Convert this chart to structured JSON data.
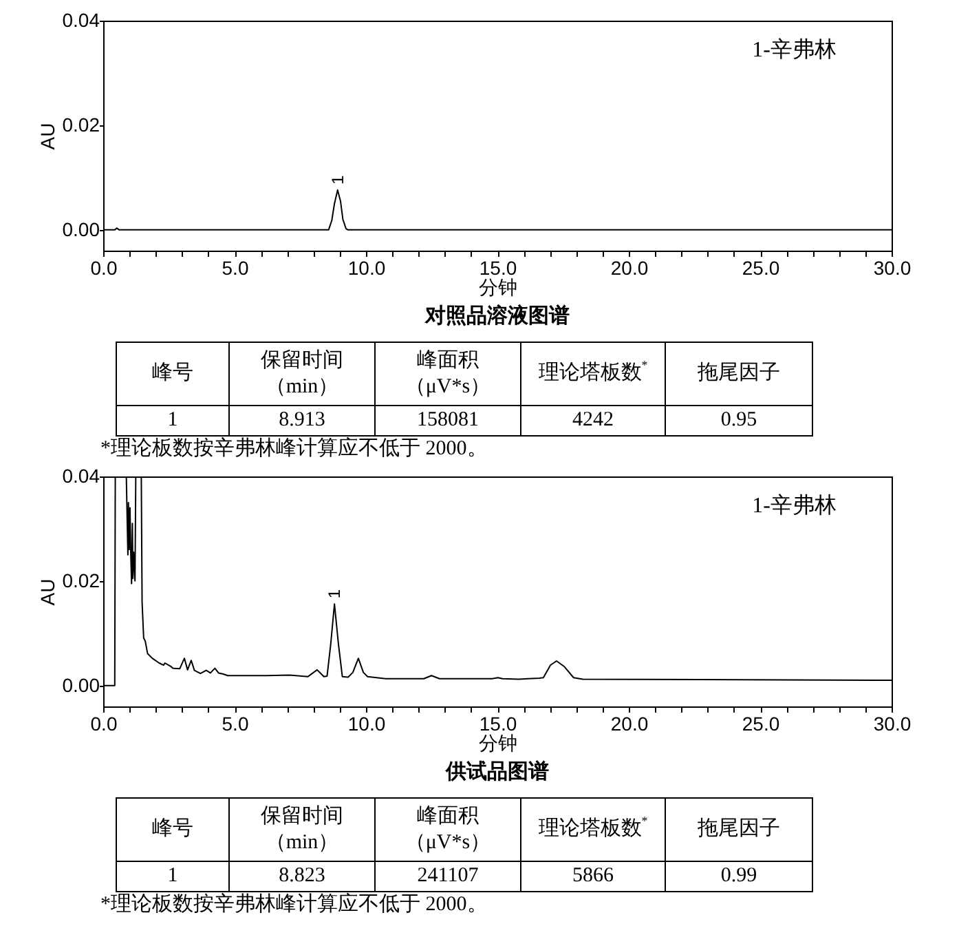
{
  "chart_data": [
    {
      "type": "line",
      "title": "对照品溶液图谱",
      "xlabel": "分钟",
      "ylabel": "AU",
      "annotations": [
        "1-辛弗林",
        {
          "text": "1",
          "x": 8.92,
          "y": 0.0076
        }
      ],
      "x": [
        0,
        0.45,
        0.52,
        0.6,
        8.58,
        8.7,
        8.8,
        8.92,
        9.03,
        9.12,
        9.24,
        9.3,
        30
      ],
      "series": [
        {
          "color": "#000000",
          "values": [
            0,
            0,
            0.0003,
            0,
            0,
            0.0018,
            0.005,
            0.0076,
            0.0055,
            0.002,
            0.0002,
            0,
            0
          ]
        }
      ],
      "xlim": [
        0,
        30
      ],
      "ylim": [
        -0.004,
        0.04
      ],
      "xticks": [
        {
          "value": 0,
          "label": "0.0"
        },
        {
          "value": 1,
          "label": null
        },
        {
          "value": 2,
          "label": null
        },
        {
          "value": 3,
          "label": null
        },
        {
          "value": 4,
          "label": null
        },
        {
          "value": 5,
          "label": "5.0"
        },
        {
          "value": 6,
          "label": null
        },
        {
          "value": 7,
          "label": null
        },
        {
          "value": 8,
          "label": null
        },
        {
          "value": 9,
          "label": null
        },
        {
          "value": 10,
          "label": "10.0"
        },
        {
          "value": 11,
          "label": null
        },
        {
          "value": 12,
          "label": null
        },
        {
          "value": 13,
          "label": null
        },
        {
          "value": 14,
          "label": null
        },
        {
          "value": 15,
          "label": "15.0"
        },
        {
          "value": 16,
          "label": null
        },
        {
          "value": 17,
          "label": null
        },
        {
          "value": 18,
          "label": null
        },
        {
          "value": 19,
          "label": null
        },
        {
          "value": 20,
          "label": "20.0"
        },
        {
          "value": 21,
          "label": null
        },
        {
          "value": 22,
          "label": null
        },
        {
          "value": 23,
          "label": null
        },
        {
          "value": 24,
          "label": null
        },
        {
          "value": 25,
          "label": "25.0"
        },
        {
          "value": 26,
          "label": null
        },
        {
          "value": 27,
          "label": null
        },
        {
          "value": 28,
          "label": null
        },
        {
          "value": 29,
          "label": null
        },
        {
          "value": 30,
          "label": "30.0"
        }
      ],
      "yticks": [
        {
          "value": 0,
          "label": "0.00"
        },
        {
          "value": 0.02,
          "label": "0.02"
        },
        {
          "value": 0.04,
          "label": "0.04"
        }
      ]
    },
    {
      "type": "other",
      "categories": [
        "峰号",
        "保留时间（min）",
        "峰面积（μV*s）",
        "理论塔板数$^{*}$",
        "拖尾因子"
      ],
      "values": [
        1,
        8.913,
        158081,
        4242,
        0.95
      ],
      "data_labels": true,
      "annotations": [
        "*理论板数按辛弗林峰计算应不低于 2000。"
      ]
    },
    {
      "type": "line",
      "title": "供试品图谱",
      "xlabel": "分钟",
      "ylabel": "AU",
      "annotations": [
        "1-辛弗林",
        {
          "text": "1",
          "x": 8.8,
          "y": 0.0156
        }
      ],
      "x": [
        0,
        0.44,
        0.46,
        0.88,
        0.9,
        0.92,
        0.94,
        0.96,
        0.99,
        1.02,
        1.05,
        1.08,
        1.11,
        1.13,
        1.16,
        1.21,
        1.24,
        1.45,
        1.48,
        1.54,
        1.6,
        1.69,
        1.87,
        2.13,
        2.3,
        2.35,
        2.56,
        2.65,
        2.91,
        3.09,
        3.21,
        3.35,
        3.47,
        3.7,
        3.92,
        4.08,
        4.25,
        4.39,
        4.57,
        4.74,
        6.22,
        7.09,
        7.79,
        8.14,
        8.4,
        8.52,
        8.66,
        8.8,
        8.95,
        9.1,
        9.32,
        9.5,
        9.71,
        9.9,
        10.06,
        10.75,
        12.2,
        12.49,
        12.8,
        14.8,
        15.02,
        15.2,
        15.81,
        16.59,
        16.75,
        17.02,
        17.25,
        17.55,
        17.9,
        18.25,
        30
      ],
      "series": [
        {
          "color": "#000000",
          "values": [
            0,
            0,
            0.04,
            0.04,
            0.035,
            0.03,
            0.025,
            0.035,
            0.026,
            0.034,
            0.025,
            0.0195,
            0.031,
            0.0205,
            0.0255,
            0.02,
            0.04,
            0.04,
            0.016,
            0.0091,
            0.0085,
            0.0061,
            0.0052,
            0.0043,
            0.0039,
            0.0043,
            0.0037,
            0.0033,
            0.0032,
            0.0052,
            0.003,
            0.0048,
            0.0029,
            0.0023,
            0.0029,
            0.0024,
            0.0033,
            0.0024,
            0.0022,
            0.0019,
            0.0019,
            0.002,
            0.0017,
            0.003,
            0.0017,
            0.0018,
            0.008,
            0.0156,
            0.008,
            0.0017,
            0.0016,
            0.0025,
            0.0052,
            0.0025,
            0.0017,
            0.0013,
            0.0013,
            0.0019,
            0.0013,
            0.0013,
            0.0015,
            0.0013,
            0.0012,
            0.0014,
            0.0015,
            0.0039,
            0.0047,
            0.0036,
            0.0015,
            0.0012,
            0.001
          ]
        }
      ],
      "xlim": [
        0,
        30
      ],
      "ylim": [
        -0.004,
        0.04
      ],
      "xticks": [
        {
          "value": 0,
          "label": "0.0"
        },
        {
          "value": 1,
          "label": null
        },
        {
          "value": 2,
          "label": null
        },
        {
          "value": 3,
          "label": null
        },
        {
          "value": 4,
          "label": null
        },
        {
          "value": 5,
          "label": "5.0"
        },
        {
          "value": 6,
          "label": null
        },
        {
          "value": 7,
          "label": null
        },
        {
          "value": 8,
          "label": null
        },
        {
          "value": 9,
          "label": null
        },
        {
          "value": 10,
          "label": "10.0"
        },
        {
          "value": 11,
          "label": null
        },
        {
          "value": 12,
          "label": null
        },
        {
          "value": 13,
          "label": null
        },
        {
          "value": 14,
          "label": null
        },
        {
          "value": 15,
          "label": "15.0"
        },
        {
          "value": 16,
          "label": null
        },
        {
          "value": 17,
          "label": null
        },
        {
          "value": 18,
          "label": null
        },
        {
          "value": 19,
          "label": null
        },
        {
          "value": 20,
          "label": "20.0"
        },
        {
          "value": 21,
          "label": null
        },
        {
          "value": 22,
          "label": null
        },
        {
          "value": 23,
          "label": null
        },
        {
          "value": 24,
          "label": null
        },
        {
          "value": 25,
          "label": "25.0"
        },
        {
          "value": 26,
          "label": null
        },
        {
          "value": 27,
          "label": null
        },
        {
          "value": 28,
          "label": null
        },
        {
          "value": 29,
          "label": null
        },
        {
          "value": 30,
          "label": "30.0"
        }
      ],
      "yticks": [
        {
          "value": 0,
          "label": "0.00"
        },
        {
          "value": 0.02,
          "label": "0.02"
        },
        {
          "value": 0.04,
          "label": "0.04"
        }
      ]
    },
    {
      "type": "other",
      "categories": [
        "峰号",
        "保留时间（min）",
        "峰面积（μV*s）",
        "理论塔板数$^{*}$",
        "拖尾因子"
      ],
      "values": [
        1,
        8.823,
        241107,
        5866,
        0.99
      ],
      "data_labels": true,
      "annotations": [
        "*理论板数按辛弗林峰计算应不低于 2000。"
      ]
    }
  ]
}
